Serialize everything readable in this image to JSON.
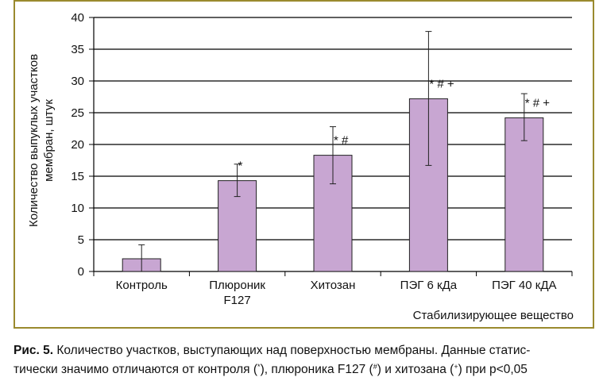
{
  "chart_data": {
    "type": "bar",
    "categories": [
      [
        "Контроль"
      ],
      [
        "Плюроник",
        "F127"
      ],
      [
        "Хитозан"
      ],
      [
        "ПЭГ 6 кДа"
      ],
      [
        "ПЭГ 40 кДА"
      ]
    ],
    "values": [
      2,
      14.3,
      18.3,
      27.2,
      24.2
    ],
    "error_low": [
      0,
      11.8,
      13.8,
      16.7,
      20.6
    ],
    "error_high": [
      4.2,
      16.9,
      22.8,
      37.8,
      28.0
    ],
    "annotations": [
      "",
      "*",
      "* #",
      "* # +",
      "* # +"
    ],
    "ylabel": [
      "Количество выпуклых участков",
      "мембран, штук"
    ],
    "xlabel": "Стабилизирующее вещество",
    "ylim": [
      0,
      40
    ],
    "yticks": [
      0,
      5,
      10,
      15,
      20,
      25,
      30,
      35,
      40
    ],
    "grid": true,
    "bar_color": "#c8a6d2",
    "bar_edge_color": "#222222"
  },
  "caption": {
    "label": "Рис. 5.",
    "line1": " Количество участков, выступающих над поверхностью мембраны. Данные статис-",
    "line2_a": "тически значимо отличаются от контроля (",
    "star": "*",
    "line2_b": "), плюроника F127 (",
    "hash": "#",
    "line2_c": ") и хитозана (",
    "plus": "+",
    "line2_d": ") при p<0,05"
  }
}
